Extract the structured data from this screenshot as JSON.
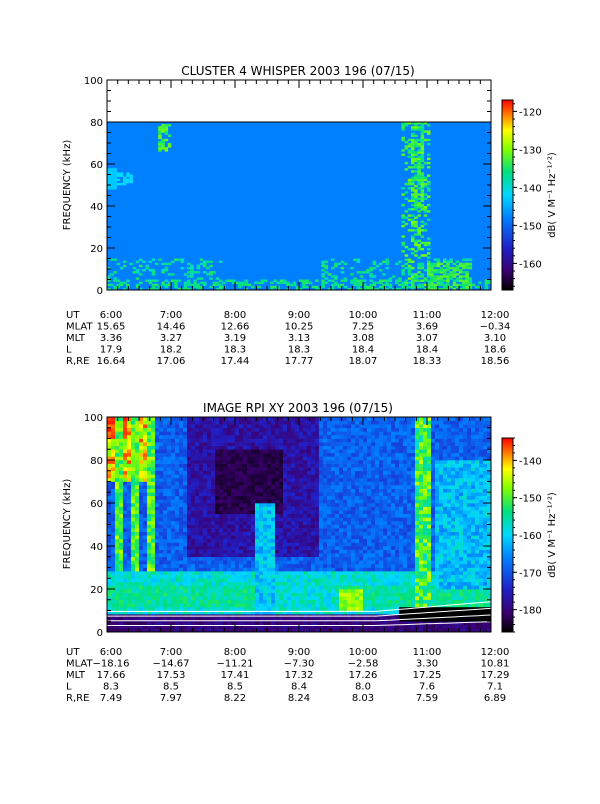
{
  "chart_data": [
    {
      "type": "heatmap",
      "title": "CLUSTER 4 WHISPER 2003 196 (07/15)",
      "ylabel": "FREQUENCY (kHz)",
      "colorbar_label": "dB( V M⁻¹ Hz⁻¹ᐟ²)",
      "ylim": [
        0,
        100
      ],
      "y_ticks": [
        "0",
        "20",
        "40",
        "60",
        "80",
        "100"
      ],
      "data_ceiling_khz": 80,
      "colorbar_range": [
        -167,
        -117
      ],
      "colorbar_ticks": [
        "-120",
        "-130",
        "-140",
        "-150",
        "-160"
      ],
      "background_level_db": -148,
      "ephemeris": {
        "labels": [
          "UT",
          "MLAT",
          "MLT",
          "L",
          "R,RE"
        ],
        "columns": [
          {
            "UT": "6:00",
            "MLAT": "15.65",
            "MLT": "3.36",
            "L": "17.9",
            "R,RE": "16.64"
          },
          {
            "UT": "7:00",
            "MLAT": "14.46",
            "MLT": "3.27",
            "L": "18.2",
            "R,RE": "17.06"
          },
          {
            "UT": "8:00",
            "MLAT": "12.66",
            "MLT": "3.19",
            "L": "18.3",
            "R,RE": "17.44"
          },
          {
            "UT": "9:00",
            "MLAT": "10.25",
            "MLT": "3.13",
            "L": "18.3",
            "R,RE": "17.77"
          },
          {
            "UT": "10:00",
            "MLAT": "7.25",
            "MLT": "3.08",
            "L": "18.4",
            "R,RE": "18.07"
          },
          {
            "UT": "11:00",
            "MLAT": "3.69",
            "MLT": "3.07",
            "L": "18.4",
            "R,RE": "18.33"
          },
          {
            "UT": "12:00",
            "MLAT": "−0.34",
            "MLT": "3.10",
            "L": "18.6",
            "R,RE": "18.56"
          }
        ]
      }
    },
    {
      "type": "heatmap",
      "title": "IMAGE RPI XY 2003 196 (07/15)",
      "ylabel": "FREQUENCY (kHz)",
      "colorbar_label": "dB( V M⁻¹ Hz⁻¹ᐟ²)",
      "ylim": [
        0,
        100
      ],
      "y_ticks": [
        "0",
        "20",
        "40",
        "60",
        "80",
        "100"
      ],
      "colorbar_range": [
        -186,
        -134
      ],
      "colorbar_ticks": [
        "-140",
        "-150",
        "-160",
        "-170",
        "-180"
      ],
      "ephemeris": {
        "labels": [
          "UT",
          "MLAT",
          "MLT",
          "L",
          "R,RE"
        ],
        "columns": [
          {
            "UT": "6:00",
            "MLAT": "−18.16",
            "MLT": "17.66",
            "L": "8.3",
            "R,RE": "7.49"
          },
          {
            "UT": "7:00",
            "MLAT": "−14.67",
            "MLT": "17.53",
            "L": "8.5",
            "R,RE": "7.97"
          },
          {
            "UT": "8:00",
            "MLAT": "−11.21",
            "MLT": "17.41",
            "L": "8.5",
            "R,RE": "8.22"
          },
          {
            "UT": "9:00",
            "MLAT": "−7.30",
            "MLT": "17.32",
            "L": "8.4",
            "R,RE": "8.24"
          },
          {
            "UT": "10:00",
            "MLAT": "−2.58",
            "MLT": "17.26",
            "L": "8.0",
            "R,RE": "8.03"
          },
          {
            "UT": "11:00",
            "MLAT": "3.30",
            "MLT": "17.25",
            "L": "7.6",
            "R,RE": "7.59"
          },
          {
            "UT": "12:00",
            "MLAT": "10.81",
            "MLT": "17.29",
            "L": "7.1",
            "R,RE": "6.89"
          }
        ]
      }
    }
  ]
}
